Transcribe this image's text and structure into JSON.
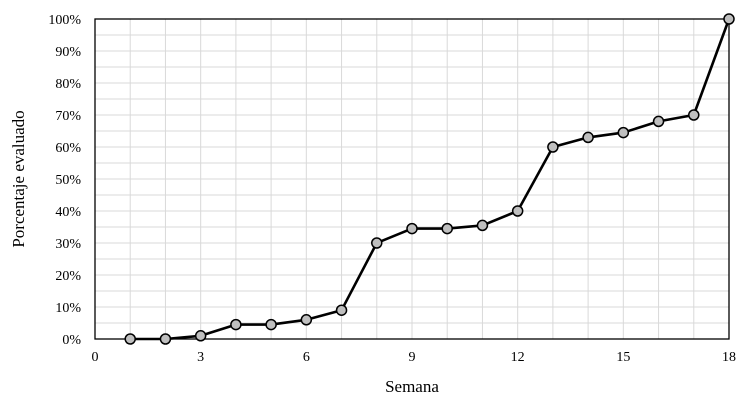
{
  "chart_data": {
    "type": "line",
    "xlabel": "Semana",
    "ylabel": "Porcentaje evaluado",
    "xlim": [
      0,
      18
    ],
    "ylim": [
      0,
      100
    ],
    "x_ticks": [
      "0",
      "3",
      "6",
      "9",
      "12",
      "15",
      "18"
    ],
    "y_ticks": [
      "0%",
      "10%",
      "20%",
      "30%",
      "40%",
      "50%",
      "60%",
      "70%",
      "80%",
      "90%",
      "100%"
    ],
    "grid": true,
    "legend": "none",
    "series": [
      {
        "x": [
          1,
          2,
          3,
          4,
          5,
          6,
          7,
          8,
          9,
          10,
          11,
          12,
          13,
          14,
          15,
          16,
          17,
          18
        ],
        "y": [
          0,
          0,
          1,
          4.5,
          4.5,
          6,
          9,
          30,
          34.5,
          34.5,
          35.5,
          40,
          60,
          63,
          64.5,
          68,
          70,
          100
        ]
      }
    ],
    "colors": {
      "line": "#000000",
      "marker_fill": "#bfbfbf",
      "grid": "#d9d9d9"
    }
  }
}
